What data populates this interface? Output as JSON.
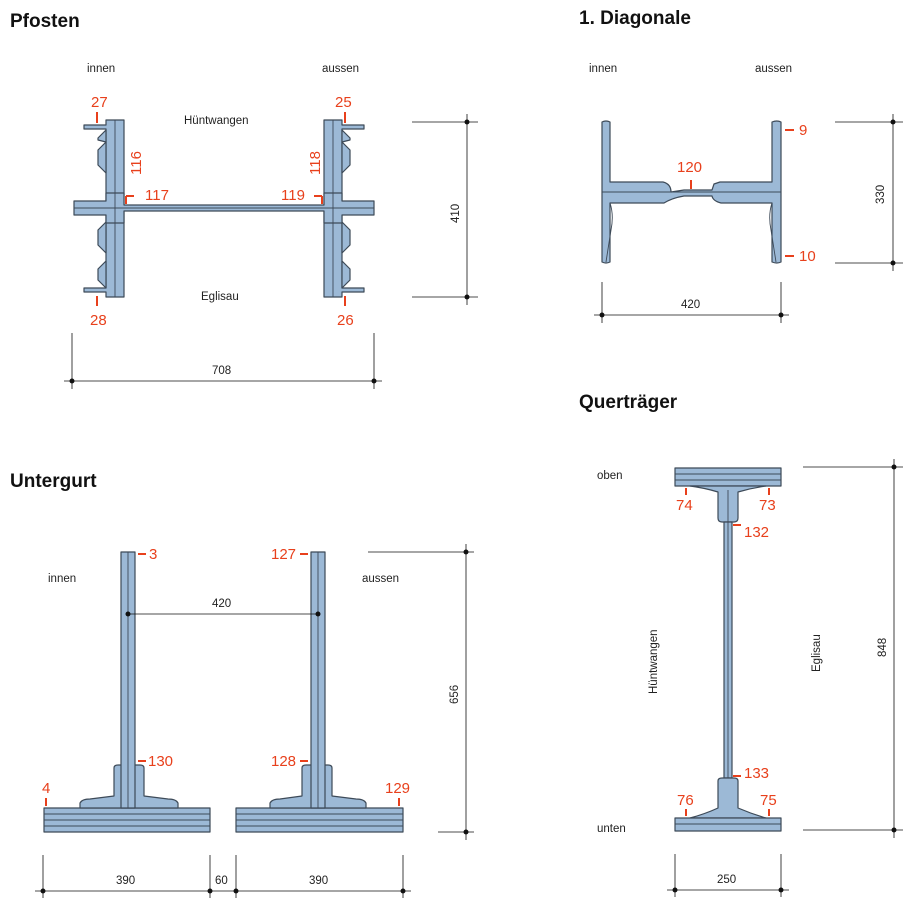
{
  "sections": {
    "pfosten": {
      "title": "Pfosten",
      "side_left": "innen",
      "side_right": "aussen",
      "top_label": "Hüntwangen",
      "bottom_label": "Eglisau",
      "welds": [
        "27",
        "25",
        "116",
        "117",
        "119",
        "118",
        "28",
        "26"
      ],
      "dim_height": "410",
      "dim_width": "708"
    },
    "diagonale": {
      "title": "1. Diagonale",
      "side_left": "innen",
      "side_right": "aussen",
      "welds": [
        "120",
        "9",
        "10"
      ],
      "dim_height": "330",
      "dim_width": "420"
    },
    "untergurt": {
      "title": "Untergurt",
      "side_left": "innen",
      "side_right": "aussen",
      "welds": [
        "3",
        "127",
        "130",
        "128",
        "4",
        "129"
      ],
      "dim_height": "656",
      "dim_inner": "420",
      "dim_bottom": [
        "390",
        "60",
        "390"
      ]
    },
    "quertraeger": {
      "title": "Querträger",
      "top_label": "oben",
      "bottom_label": "unten",
      "left_label": "Hüntwangen",
      "right_label": "Eglisau",
      "welds": [
        "74",
        "73",
        "132",
        "133",
        "76",
        "75"
      ],
      "dim_height": "848",
      "dim_width": "250"
    }
  }
}
